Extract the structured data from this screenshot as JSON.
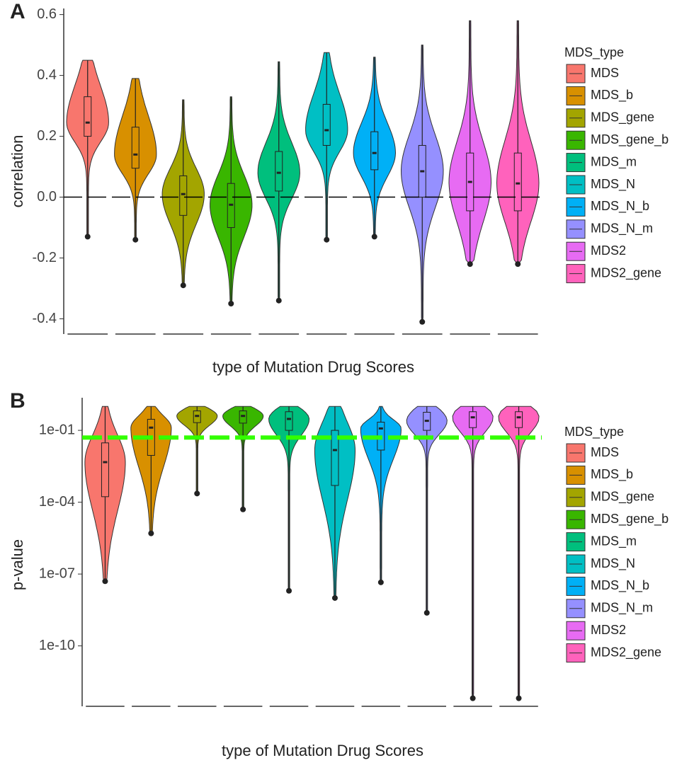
{
  "chart_data": [
    {
      "type": "violin",
      "panel": "A",
      "xlabel": "type of Mutation Drug Scores",
      "ylabel": "correlation",
      "legend_title": "MDS_type",
      "categories": [
        "MDS",
        "MDS_b",
        "MDS_gene",
        "MDS_gene_b",
        "MDS_m",
        "MDS_N",
        "MDS_N_b",
        "MDS_N_m",
        "MDS2",
        "MDS2_gene"
      ],
      "colors": [
        "#F8766D",
        "#D89000",
        "#A3A500",
        "#39B600",
        "#00BF7D",
        "#00BFC4",
        "#00B0F6",
        "#9590FF",
        "#E76BF3",
        "#FF62BC"
      ],
      "min": [
        -0.13,
        -0.14,
        -0.29,
        -0.35,
        -0.34,
        -0.14,
        -0.13,
        -0.41,
        -0.22,
        -0.22
      ],
      "q1": [
        0.2,
        0.095,
        -0.06,
        -0.1,
        0.02,
        0.17,
        0.09,
        0.0,
        -0.045,
        -0.045
      ],
      "median": [
        0.245,
        0.14,
        0.01,
        -0.025,
        0.08,
        0.22,
        0.145,
        0.085,
        0.05,
        0.045
      ],
      "q3": [
        0.33,
        0.23,
        0.07,
        0.045,
        0.15,
        0.305,
        0.215,
        0.17,
        0.145,
        0.145
      ],
      "max": [
        0.45,
        0.39,
        0.32,
        0.33,
        0.445,
        0.475,
        0.46,
        0.5,
        0.58,
        0.58
      ],
      "ylim": [
        -0.45,
        0.62
      ],
      "yticks": [
        -0.4,
        -0.2,
        {
          "value": 0,
          "label": "0.0"
        },
        0.2,
        0.4,
        0.6
      ],
      "log_y": false,
      "grid": false,
      "hline": {
        "value": 0,
        "color": "#000000",
        "dashed": true
      }
    },
    {
      "type": "violin",
      "panel": "B",
      "xlabel": "type of Mutation Drug Scores",
      "ylabel": "p-value",
      "legend_title": "MDS_type",
      "categories": [
        "MDS",
        "MDS_b",
        "MDS_gene",
        "MDS_gene_b",
        "MDS_m",
        "MDS_N",
        "MDS_N_b",
        "MDS_N_m",
        "MDS2",
        "MDS2_gene"
      ],
      "colors": [
        "#F8766D",
        "#D89000",
        "#A3A500",
        "#39B600",
        "#00BF7D",
        "#00BFC4",
        "#00B0F6",
        "#9590FF",
        "#E76BF3",
        "#FF62BC"
      ],
      "min": [
        5e-08,
        5e-06,
        0.00023,
        5e-05,
        2e-08,
        1e-08,
        4.5e-08,
        2.4e-09,
        6.5e-13,
        6.5e-13
      ],
      "q1": [
        0.00017,
        0.009,
        0.21,
        0.2,
        0.1,
        0.0005,
        0.015,
        0.1,
        0.13,
        0.13
      ],
      "median": [
        0.0047,
        0.13,
        0.4,
        0.4,
        0.3,
        0.015,
        0.12,
        0.25,
        0.35,
        0.35
      ],
      "q3": [
        0.03,
        0.29,
        0.65,
        0.65,
        0.6,
        0.1,
        0.22,
        0.57,
        0.6,
        0.6
      ],
      "max": [
        1,
        1,
        1,
        1,
        1,
        1,
        1,
        1,
        1,
        1
      ],
      "ylim": [
        3e-13,
        2.3
      ],
      "yticks": [
        {
          "value": 1e-10,
          "label": "1e-10"
        },
        {
          "value": 1e-07,
          "label": "1e-07"
        },
        {
          "value": 0.0001,
          "label": "1e-04"
        },
        {
          "value": 0.1,
          "label": "1e-01"
        }
      ],
      "log_y": true,
      "grid": false,
      "hline": {
        "value": 0.05,
        "color": "#33FF00",
        "dashed": true
      }
    }
  ]
}
